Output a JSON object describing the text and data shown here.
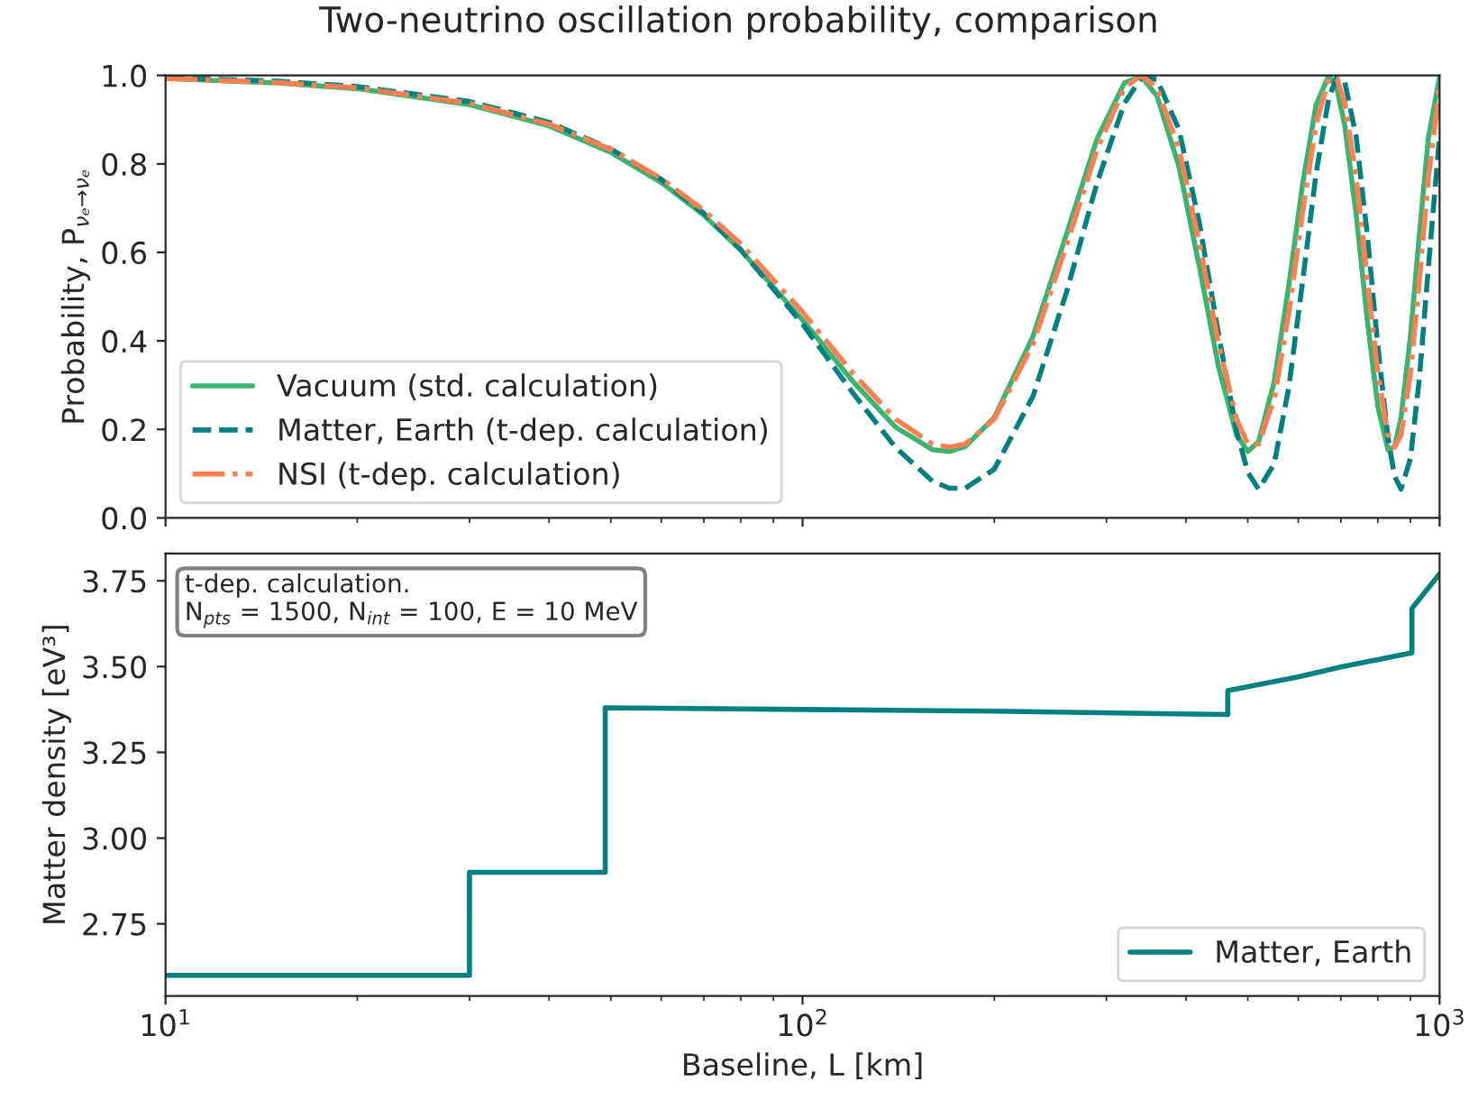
{
  "chart_data": [
    {
      "type": "line",
      "title": "Two-neutrino oscillation probability, comparison",
      "ylabel": "Probability, P$_{νₑ→νₑ}$",
      "log": "x",
      "xlim": [
        10,
        1000
      ],
      "xticks": [
        {
          "value": 10,
          "label": null
        },
        {
          "value": 100,
          "label": null
        },
        {
          "value": 1000,
          "label": null
        }
      ],
      "ylim": [
        0,
        1
      ],
      "yticks": [
        {
          "value": 0,
          "label": "0.0"
        },
        {
          "value": 0.2,
          "label": "0.2"
        },
        {
          "value": 0.4,
          "label": "0.4"
        },
        {
          "value": 0.6,
          "label": "0.6"
        },
        {
          "value": 0.8,
          "label": "0.8"
        },
        {
          "value": 1,
          "label": "1.0"
        }
      ],
      "tick_labels": "y",
      "grid": false,
      "legend": "bottom left",
      "marker": "none",
      "x": [
        10,
        15,
        20,
        30,
        40,
        50,
        60,
        70,
        80,
        100,
        120,
        140,
        160,
        170,
        180,
        200,
        230,
        260,
        290,
        320,
        340,
        360,
        390,
        420,
        450,
        480,
        500,
        520,
        550,
        580,
        610,
        640,
        670,
        690,
        710,
        740,
        770,
        800,
        830,
        850,
        870,
        900,
        930,
        960,
        1000
      ],
      "series": [
        {
          "name": "Vacuum (std. calculation)",
          "color": "#3cb371",
          "line_style": "solid",
          "values": [
            0.993,
            0.983,
            0.97,
            0.934,
            0.886,
            0.826,
            0.758,
            0.684,
            0.605,
            0.447,
            0.308,
            0.205,
            0.154,
            0.15,
            0.161,
            0.227,
            0.41,
            0.644,
            0.857,
            0.983,
            0.998,
            0.954,
            0.793,
            0.565,
            0.34,
            0.187,
            0.15,
            0.173,
            0.308,
            0.526,
            0.758,
            0.934,
            1.0,
            0.97,
            0.886,
            0.684,
            0.447,
            0.251,
            0.154,
            0.161,
            0.227,
            0.41,
            0.644,
            0.857,
            0.998
          ]
        },
        {
          "name": "Matter, Earth (t-dep. calculation)",
          "color": "#008080",
          "line_style": "dashed",
          "values": [
            0.995,
            0.987,
            0.975,
            0.941,
            0.894,
            0.834,
            0.765,
            0.688,
            0.606,
            0.438,
            0.282,
            0.159,
            0.083,
            0.067,
            0.067,
            0.11,
            0.275,
            0.513,
            0.758,
            0.937,
            0.994,
            0.991,
            0.877,
            0.664,
            0.414,
            0.197,
            0.103,
            0.065,
            0.122,
            0.296,
            0.538,
            0.779,
            0.949,
            0.997,
            0.985,
            0.86,
            0.64,
            0.389,
            0.18,
            0.094,
            0.065,
            0.134,
            0.318,
            0.563,
            0.865
          ]
        },
        {
          "name": "NSI (t-dep. calculation)",
          "color": "#ff7f50",
          "line_style": "dashdot",
          "values": [
            0.993,
            0.984,
            0.972,
            0.937,
            0.89,
            0.833,
            0.767,
            0.695,
            0.619,
            0.465,
            0.327,
            0.223,
            0.167,
            0.16,
            0.167,
            0.223,
            0.393,
            0.619,
            0.833,
            0.972,
            1.0,
            0.972,
            0.833,
            0.619,
            0.393,
            0.223,
            0.167,
            0.167,
            0.27,
            0.465,
            0.695,
            0.89,
            0.993,
            0.993,
            0.937,
            0.767,
            0.541,
            0.327,
            0.188,
            0.16,
            0.188,
            0.327,
            0.541,
            0.767,
            0.972
          ]
        }
      ]
    },
    {
      "type": "line",
      "xlabel": "Baseline, L [km]",
      "ylabel": "Matter density [eV³]",
      "log": "x",
      "xlim": [
        10,
        1000
      ],
      "xticks": [
        {
          "value": 10,
          "label": "10$^{1}$"
        },
        {
          "value": 100,
          "label": "10$^{2}$"
        },
        {
          "value": 1000,
          "label": "10$^{3}$"
        }
      ],
      "ylim": [
        2.54,
        3.83
      ],
      "yticks": [
        {
          "value": 2.75,
          "label": "2.75"
        },
        {
          "value": 3.0,
          "label": "3.00"
        },
        {
          "value": 3.25,
          "label": "3.25"
        },
        {
          "value": 3.5,
          "label": "3.50"
        },
        {
          "value": 3.75,
          "label": "3.75"
        }
      ],
      "grid": false,
      "legend": "bottom right",
      "marker": "none",
      "annotations": [
        "t-dep. calculation.\nN$_{pts}$ = 1500, N$_{int}$ = 100, E = 10 MeV"
      ],
      "series": [
        {
          "name": "Matter, Earth",
          "color": "#008080",
          "line_style": "solid",
          "x": [
            10,
            30,
            30,
            49,
            49,
            100,
            200,
            465,
            465,
            600,
            705,
            905,
            905,
            1000
          ],
          "values": [
            2.6,
            2.6,
            2.9,
            2.9,
            3.38,
            3.375,
            3.37,
            3.36,
            3.43,
            3.47,
            3.5,
            3.54,
            3.67,
            3.77
          ]
        }
      ]
    }
  ]
}
